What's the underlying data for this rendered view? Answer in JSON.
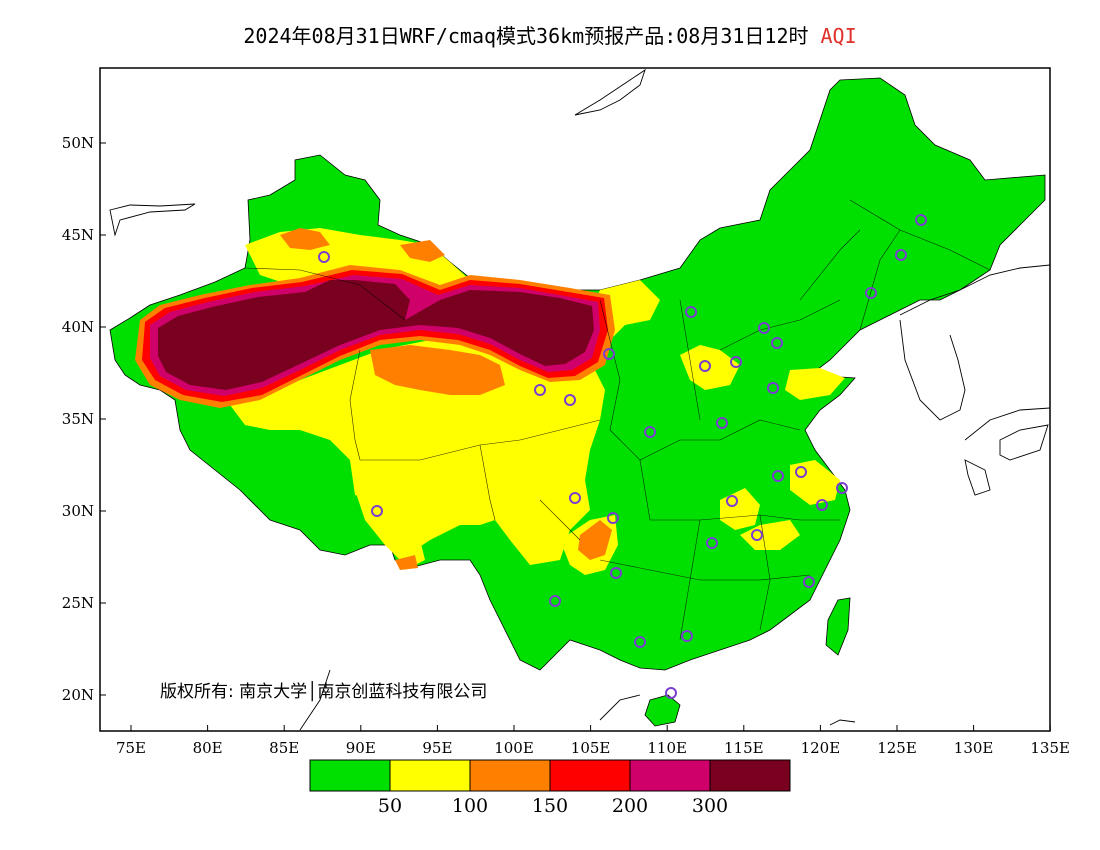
{
  "title": {
    "main": "2024年08月31日WRF/cmaq模式36km预报产品:08月31日12时",
    "variable": "AQI",
    "variable_color": "#e0302a"
  },
  "axes": {
    "lat_ticks": [
      "50N",
      "45N",
      "40N",
      "35N",
      "30N",
      "25N",
      "20N"
    ],
    "lon_ticks": [
      "75E",
      "80E",
      "85E",
      "90E",
      "95E",
      "100E",
      "105E",
      "110E",
      "115E",
      "120E",
      "125E",
      "130E",
      "135E"
    ],
    "lon_range": [
      73,
      135
    ],
    "lat_range": [
      18,
      54
    ]
  },
  "legend": {
    "colors": [
      "#00e000",
      "#ffff00",
      "#ff8000",
      "#ff0000",
      "#d0006a",
      "#7a0020"
    ],
    "labels": [
      "50",
      "100",
      "150",
      "200",
      "300"
    ]
  },
  "copyright": "版权所有: 南京大学│南京创蓝科技有限公司",
  "map_colors": {
    "good": "#00e000",
    "moderate": "#ffff00",
    "usg": "#ff8000",
    "unhealthy": "#ff0000",
    "very_unhealthy": "#d0006a",
    "hazardous": "#7a0020",
    "station_marker": "#7b3fd0"
  }
}
